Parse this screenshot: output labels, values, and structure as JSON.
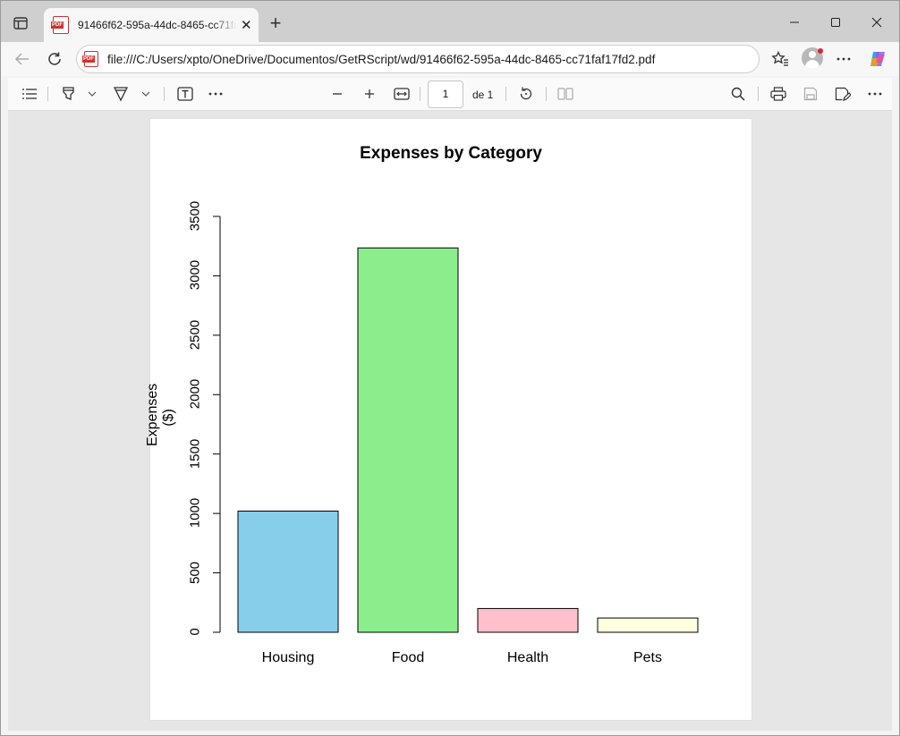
{
  "browser": {
    "tab_title": "91466f62-595a-44dc-8465-cc71faf17fd2.pdf",
    "url": "file:///C:/Users/xpto/OneDrive/Documentos/GetRScript/wd/91466f62-595a-44dc-8465-cc71faf17fd2.pdf",
    "pdf_badge": "PDF"
  },
  "pdf_toolbar": {
    "page_number": "1",
    "page_of": "de 1"
  },
  "chart_data": {
    "type": "bar",
    "title": "Expenses by Category",
    "xlabel": "",
    "ylabel": "Expenses ($)",
    "categories": [
      "Housing",
      "Food",
      "Health",
      "Pets"
    ],
    "values": [
      1020,
      3235,
      200,
      120
    ],
    "colors": [
      "#87ceeb",
      "#8ced8c",
      "#ffc0cb",
      "#ffffe0"
    ],
    "ylim": [
      0,
      3500
    ],
    "yticks": [
      "0",
      "500",
      "1000",
      "1500",
      "2000",
      "2500",
      "3000",
      "3500"
    ],
    "grid": false,
    "legend": "none"
  }
}
